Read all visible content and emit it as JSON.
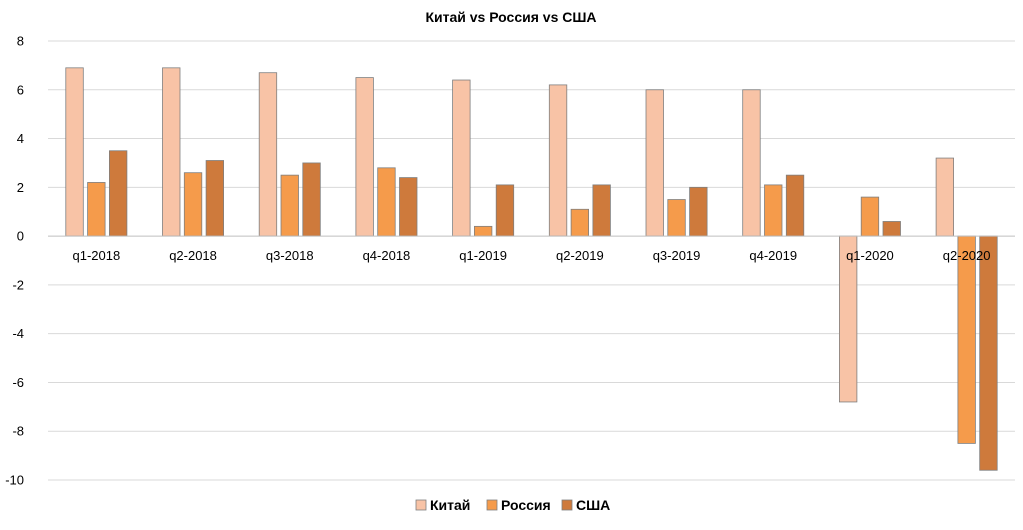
{
  "chart_data": {
    "type": "bar",
    "title": "Китай vs Россия vs США",
    "xlabel": "",
    "ylabel": "",
    "ylim": [
      -10,
      8
    ],
    "yticks": [
      8,
      6,
      4,
      2,
      0,
      -2,
      -4,
      -6,
      -8,
      -10
    ],
    "grid": true,
    "legend_position": "bottom",
    "categories": [
      "q1-2018",
      "q2-2018",
      "q3-2018",
      "q4-2018",
      "q1-2019",
      "q2-2019",
      "q3-2019",
      "q4-2019",
      "q1-2020",
      "q2-2020"
    ],
    "series": [
      {
        "name": "Китай",
        "color": "#F8C3A6",
        "values": [
          6.9,
          6.9,
          6.7,
          6.5,
          6.4,
          6.2,
          6.0,
          6.0,
          -6.8,
          3.2
        ]
      },
      {
        "name": "Россия",
        "color": "#F59B4B",
        "values": [
          2.2,
          2.6,
          2.5,
          2.8,
          0.4,
          1.1,
          1.5,
          2.1,
          1.6,
          -8.5
        ]
      },
      {
        "name": "США",
        "color": "#CE7A3C",
        "values": [
          3.5,
          3.1,
          3.0,
          2.4,
          2.1,
          2.1,
          2.0,
          2.5,
          0.6,
          -9.6
        ]
      }
    ]
  }
}
